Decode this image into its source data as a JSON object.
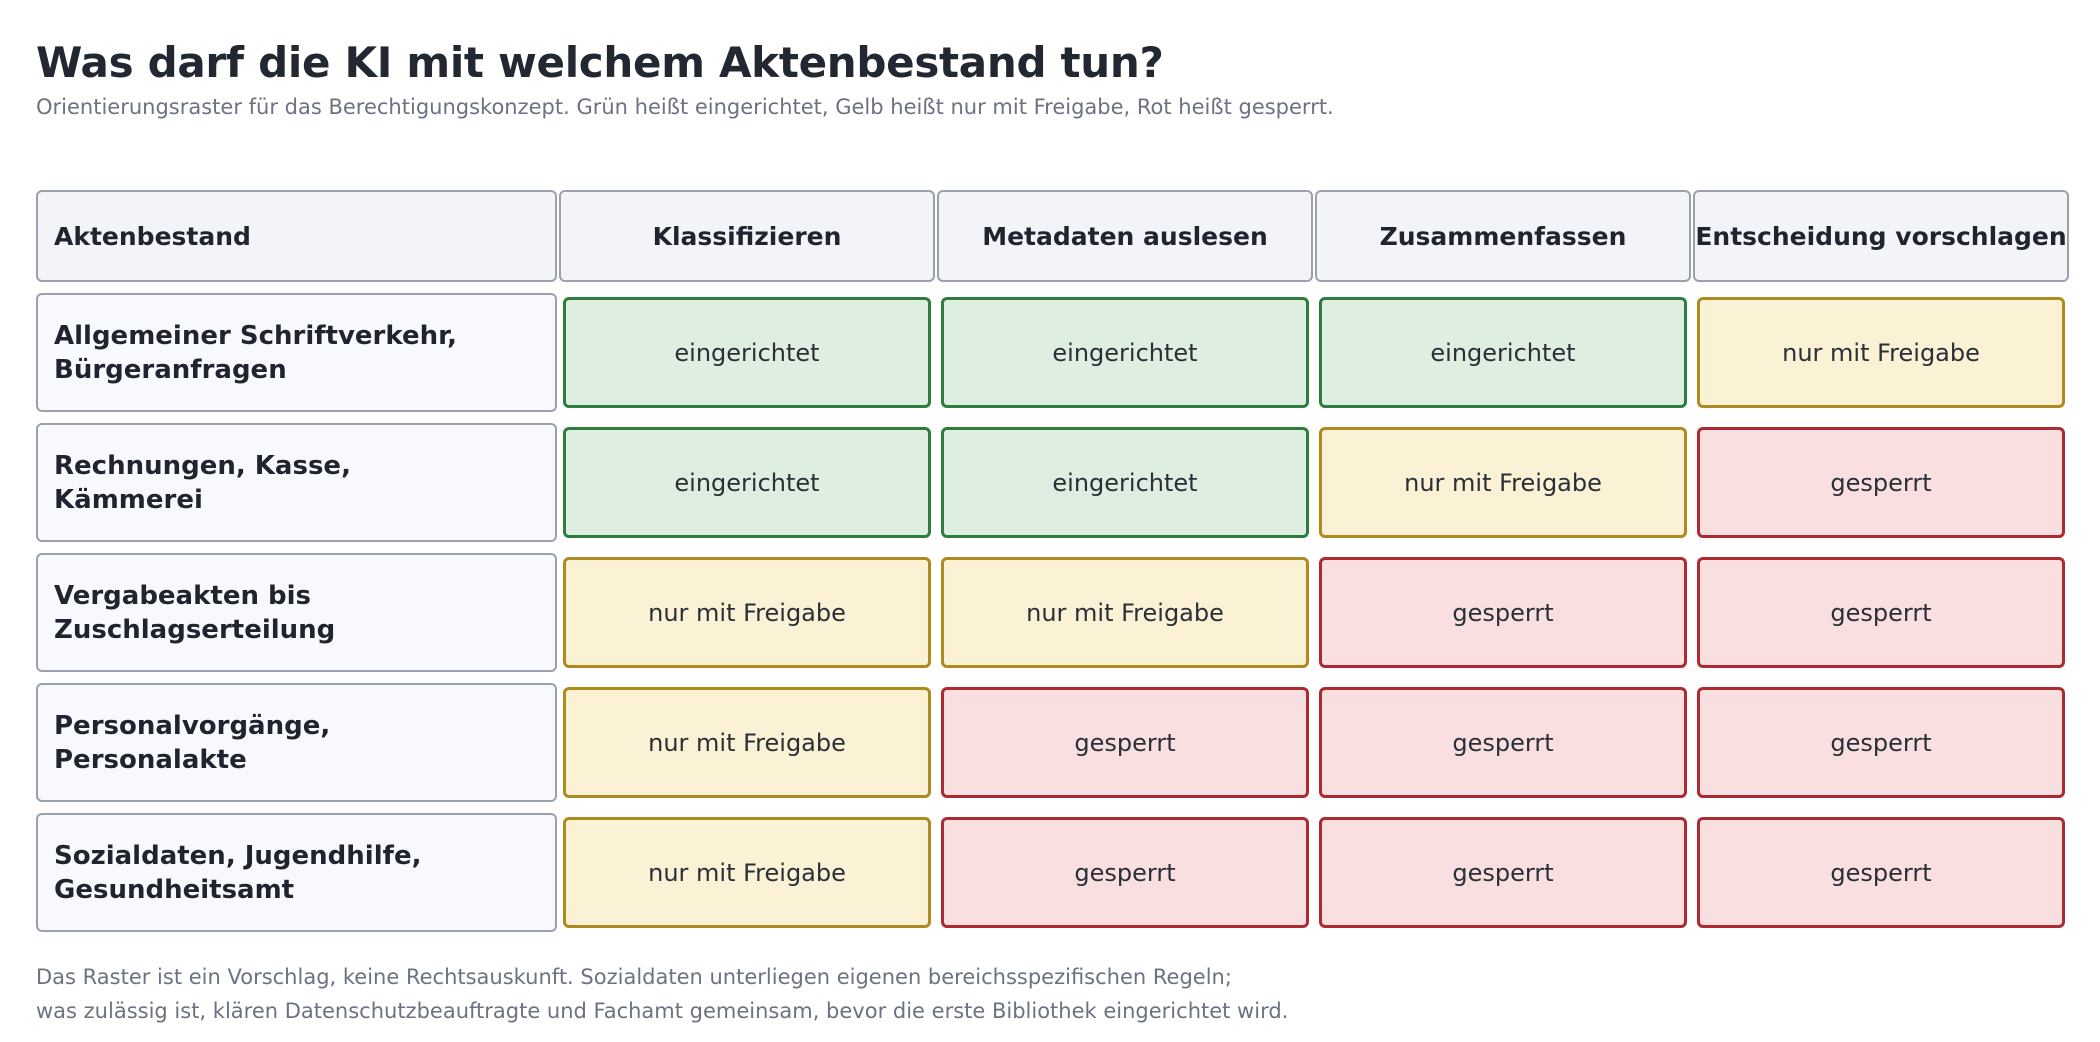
{
  "title": "Was darf die KI mit welchem Aktenbestand tun?",
  "subtitle": "Orientierungsraster für das Berechtigungskonzept. Grün heißt eingerichtet, Gelb heißt nur mit Freigabe, Rot heißt gesperrt.",
  "colors": {
    "eingerichtet": "#2e7d3c",
    "nur mit Freigabe": "#ae8a1f",
    "gesperrt": "#ad2a30"
  },
  "table": {
    "header": [
      "Aktenbestand",
      "Klassifizieren",
      "Metadaten auslesen",
      "Zusammenfassen",
      "Entscheidung vorschlagen"
    ],
    "rows": [
      {
        "label": "Allgemeiner Schriftverkehr,\nBürgeranfragen",
        "cells": [
          "eingerichtet",
          "eingerichtet",
          "eingerichtet",
          "nur mit Freigabe"
        ]
      },
      {
        "label": "Rechnungen, Kasse,\nKämmerei",
        "cells": [
          "eingerichtet",
          "eingerichtet",
          "nur mit Freigabe",
          "gesperrt"
        ]
      },
      {
        "label": "Vergabeakten bis\nZuschlagserteilung",
        "cells": [
          "nur mit Freigabe",
          "nur mit Freigabe",
          "gesperrt",
          "gesperrt"
        ]
      },
      {
        "label": "Personalvorgänge,\nPersonalakte",
        "cells": [
          "nur mit Freigabe",
          "gesperrt",
          "gesperrt",
          "gesperrt"
        ]
      },
      {
        "label": "Sozialdaten, Jugendhilfe,\nGesundheitsamt",
        "cells": [
          "nur mit Freigabe",
          "gesperrt",
          "gesperrt",
          "gesperrt"
        ]
      }
    ]
  },
  "footnote": "Das Raster ist ein Vorschlag, keine Rechtsauskunft. Sozialdaten unterliegen eigenen bereichsspezifischen Regeln;\nwas zulässig ist, klären Datenschutzbeauftragte und Fachamt gemeinsam, bevor die erste Bibliothek eingerichtet wird."
}
